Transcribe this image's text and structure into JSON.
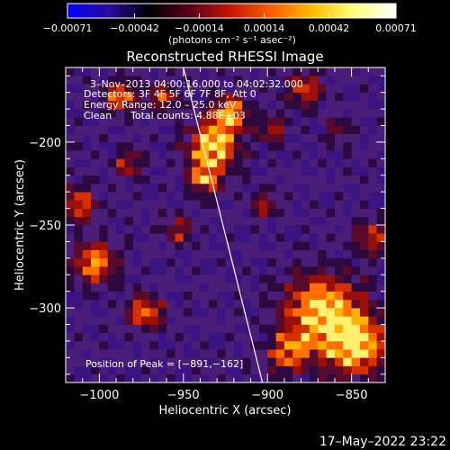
{
  "chart_data": {
    "type": "heatmap",
    "title": "Reconstructed RHESSI Image",
    "xlabel": "Heliocentric X (arcsec)",
    "ylabel": "Heliocentric Y (arcsec)",
    "xlim": [
      -1020,
      -830
    ],
    "ylim": [
      -345,
      -155
    ],
    "x_ticks": [
      -1000,
      -950,
      -900,
      -850
    ],
    "x_tick_labels": [
      "−1000",
      "−950",
      "−900",
      "−850"
    ],
    "y_ticks": [
      -300,
      -250,
      -200
    ],
    "y_tick_labels": [
      "−300",
      "−250",
      "−200"
    ],
    "colorbar": {
      "min": -0.00071,
      "max": 0.00071,
      "ticks": [
        -0.00071,
        -0.00042,
        -0.00014,
        0.00014,
        0.00042,
        0.00071
      ],
      "tick_labels": [
        "−0.00071",
        "−0.00042",
        "−0.00014",
        "0.00014",
        "0.00042",
        "0.00071"
      ],
      "units_label": "(photons cm⁻² s⁻¹ asec⁻²)",
      "stops": [
        "#0000ff",
        "#2a0aa0",
        "#000000",
        "#5a0018",
        "#c81800",
        "#ff6000",
        "#ffc000",
        "#ffff80",
        "#ffffff"
      ]
    },
    "annotations": {
      "time_range": "3–Nov–2013 04:00:16.000 to 04:02:32.000",
      "detectors": "Detectors: 3F 4F 5F 6F 7F 8F, Att 0",
      "energy_range": "Energy Range: 12.0 – 25.0 keV",
      "clean_label": "Clean",
      "total_counts": "Total counts: 4.88E+03",
      "peak_position": "Position of Peak = [−891,−162]"
    },
    "limb_line": [
      [
        -950,
        -155
      ],
      [
        -903,
        -345
      ]
    ],
    "grid": false,
    "timestamp": "17–May–2022 23:22"
  }
}
